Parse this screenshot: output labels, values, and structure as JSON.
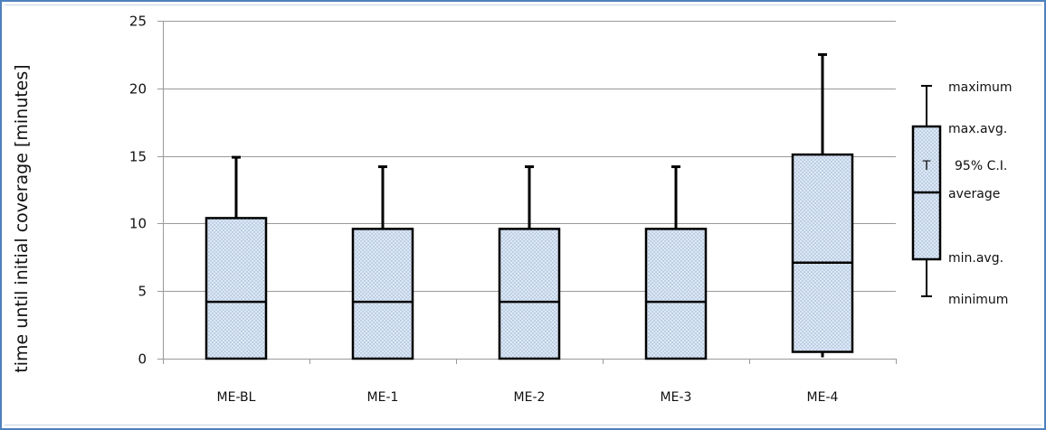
{
  "chart_data": {
    "type": "boxplot",
    "title": "",
    "xlabel": "",
    "ylabel": "time until initial coverage [minutes]",
    "ylim": [
      0,
      25
    ],
    "yticks": [
      0,
      5,
      10,
      15,
      20,
      25
    ],
    "grid": true,
    "categories": [
      "ME-BL",
      "ME-1",
      "ME-2",
      "ME-3",
      "ME-4"
    ],
    "boxes": [
      {
        "category": "ME-BL",
        "minimum": 0,
        "min_avg": 0,
        "average": 4.2,
        "max_avg": 10.4,
        "maximum": 14.9
      },
      {
        "category": "ME-1",
        "minimum": 0,
        "min_avg": 0,
        "average": 4.2,
        "max_avg": 9.6,
        "maximum": 14.2
      },
      {
        "category": "ME-2",
        "minimum": 0,
        "min_avg": 0,
        "average": 4.2,
        "max_avg": 9.6,
        "maximum": 14.2
      },
      {
        "category": "ME-3",
        "minimum": 0,
        "min_avg": 0,
        "average": 4.2,
        "max_avg": 9.6,
        "maximum": 14.2
      },
      {
        "category": "ME-4",
        "minimum": 0.1,
        "min_avg": 0.5,
        "average": 7.1,
        "max_avg": 15.1,
        "maximum": 22.5
      }
    ],
    "legend": {
      "placement": "right",
      "labels": {
        "maximum": "maximum",
        "max_avg": "max.avg.",
        "ci_symbol": "T",
        "ci": "95% C.I.",
        "average": "average",
        "min_avg": "min.avg.",
        "minimum": "minimum"
      }
    },
    "colors": {
      "box_fill": "#dde8f5",
      "box_dots": "#8fa9cc",
      "stroke": "#000000",
      "grid": "#9a9a9a",
      "frame": "#4f81bd"
    }
  }
}
